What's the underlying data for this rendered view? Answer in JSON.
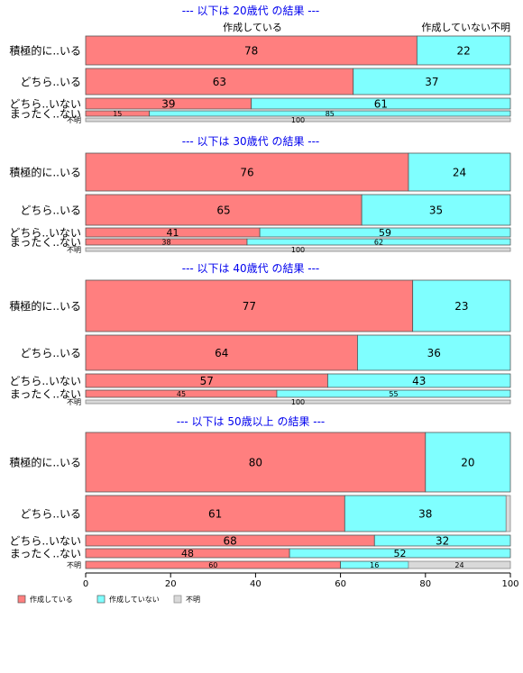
{
  "chart_data": {
    "type": "bar",
    "orientation": "horizontal",
    "stacked_percent": true,
    "title": "",
    "xlim": [
      0,
      100
    ],
    "xticks": [
      "0",
      "20",
      "40",
      "60",
      "80",
      "100"
    ],
    "series": [
      {
        "name": "作成している",
        "color": "#ff7f7f"
      },
      {
        "name": "作成していない",
        "color": "#7fffff"
      },
      {
        "name": "不明",
        "color": "#d9d9d9"
      }
    ],
    "column_headers": {
      "left": "作成している",
      "right": "作成していない",
      "right2": "不明"
    },
    "panels": [
      {
        "title": "--- 以下は 20歳代 の結果 ---",
        "rows": [
          {
            "label": "積極的に..いる",
            "values": [
              78,
              22,
              0
            ],
            "labels": [
              "78",
              "22",
              ""
            ]
          },
          {
            "label": "どちら..いる",
            "values": [
              63,
              37,
              0
            ],
            "labels": [
              "63",
              "37",
              ""
            ]
          },
          {
            "label": "どちら..いない",
            "values": [
              39,
              61,
              0
            ],
            "labels": [
              "39",
              "61",
              ""
            ]
          },
          {
            "label": "まったく..ない",
            "values": [
              15,
              85,
              0
            ],
            "labels": [
              "15",
              "85",
              ""
            ]
          },
          {
            "label": "不明",
            "values": [
              0,
              0,
              100
            ],
            "labels": [
              "",
              "",
              "100"
            ]
          }
        ]
      },
      {
        "title": "--- 以下は 30歳代 の結果 ---",
        "rows": [
          {
            "label": "積極的に..いる",
            "values": [
              76,
              24,
              0
            ],
            "labels": [
              "76",
              "24",
              ""
            ]
          },
          {
            "label": "どちら..いる",
            "values": [
              65,
              35,
              0
            ],
            "labels": [
              "65",
              "35",
              ""
            ]
          },
          {
            "label": "どちら..いない",
            "values": [
              41,
              59,
              0
            ],
            "labels": [
              "41",
              "59",
              ""
            ]
          },
          {
            "label": "まったく..ない",
            "values": [
              38,
              62,
              0
            ],
            "labels": [
              "38",
              "62",
              ""
            ]
          },
          {
            "label": "不明",
            "values": [
              0,
              0,
              100
            ],
            "labels": [
              "",
              "",
              "100"
            ]
          }
        ]
      },
      {
        "title": "--- 以下は 40歳代 の結果 ---",
        "rows": [
          {
            "label": "積極的に..いる",
            "values": [
              77,
              23,
              0
            ],
            "labels": [
              "77",
              "23",
              ""
            ]
          },
          {
            "label": "どちら..いる",
            "values": [
              64,
              36,
              0
            ],
            "labels": [
              "64",
              "36",
              ""
            ]
          },
          {
            "label": "どちら..いない",
            "values": [
              57,
              43,
              0
            ],
            "labels": [
              "57",
              "43",
              ""
            ]
          },
          {
            "label": "まったく..ない",
            "values": [
              45,
              55,
              0
            ],
            "labels": [
              "45",
              "55",
              ""
            ]
          },
          {
            "label": "不明",
            "values": [
              0,
              0,
              100
            ],
            "labels": [
              "",
              "",
              "100"
            ]
          }
        ]
      },
      {
        "title": "--- 以下は 50歳以上 の結果 ---",
        "rows": [
          {
            "label": "積極的に..いる",
            "values": [
              80,
              20,
              0
            ],
            "labels": [
              "80",
              "20",
              ""
            ]
          },
          {
            "label": "どちら..いる",
            "values": [
              61,
              38,
              1
            ],
            "labels": [
              "61",
              "38",
              ""
            ]
          },
          {
            "label": "どちら..いない",
            "values": [
              68,
              32,
              0
            ],
            "labels": [
              "68",
              "32",
              ""
            ]
          },
          {
            "label": "まったく..ない",
            "values": [
              48,
              52,
              0
            ],
            "labels": [
              "48",
              "52",
              ""
            ]
          },
          {
            "label": "不明",
            "values": [
              60,
              16,
              24
            ],
            "labels": [
              "60",
              "16",
              "24"
            ]
          }
        ]
      }
    ]
  }
}
